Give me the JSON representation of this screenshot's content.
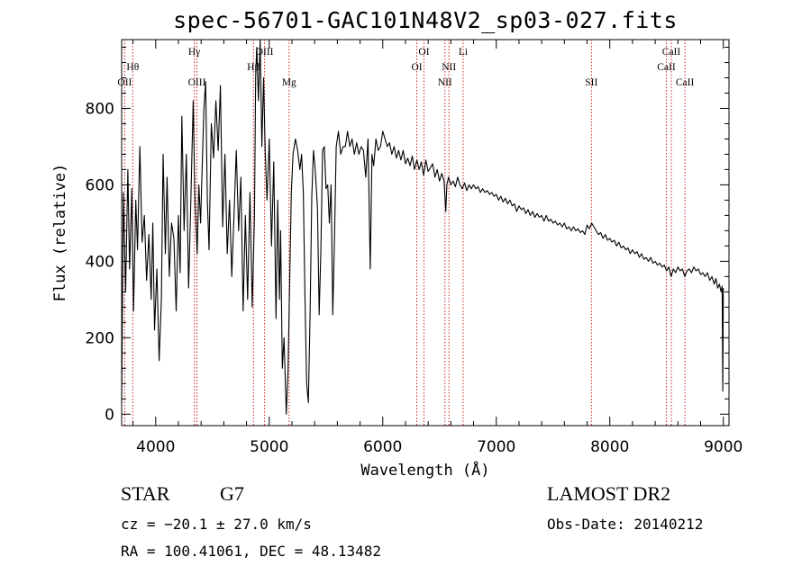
{
  "title": "spec-56701-GAC101N48V2_sp03-027.fits",
  "chart_data": {
    "type": "line",
    "xlabel": "Wavelength (Å)",
    "ylabel": "Flux (relative)",
    "xlim": [
      3700,
      9050
    ],
    "ylim": [
      -30,
      980
    ],
    "xticks": [
      4000,
      5000,
      6000,
      7000,
      8000,
      9000
    ],
    "yticks": [
      0,
      200,
      400,
      600,
      800
    ],
    "grid": false,
    "series": [
      {
        "color": "#000000",
        "points": [
          [
            3700,
            30
          ],
          [
            3715,
            580
          ],
          [
            3735,
            320
          ],
          [
            3755,
            640
          ],
          [
            3770,
            380
          ],
          [
            3790,
            590
          ],
          [
            3805,
            270
          ],
          [
            3825,
            560
          ],
          [
            3840,
            430
          ],
          [
            3860,
            700
          ],
          [
            3880,
            450
          ],
          [
            3900,
            520
          ],
          [
            3920,
            350
          ],
          [
            3940,
            470
          ],
          [
            3960,
            300
          ],
          [
            3975,
            500
          ],
          [
            3990,
            220
          ],
          [
            4010,
            380
          ],
          [
            4030,
            140
          ],
          [
            4050,
            300
          ],
          [
            4065,
            680
          ],
          [
            4085,
            420
          ],
          [
            4100,
            620
          ],
          [
            4120,
            360
          ],
          [
            4140,
            500
          ],
          [
            4160,
            460
          ],
          [
            4180,
            270
          ],
          [
            4200,
            520
          ],
          [
            4215,
            370
          ],
          [
            4230,
            780
          ],
          [
            4250,
            480
          ],
          [
            4270,
            680
          ],
          [
            4290,
            330
          ],
          [
            4310,
            560
          ],
          [
            4330,
            820
          ],
          [
            4345,
            570
          ],
          [
            4365,
            420
          ],
          [
            4380,
            600
          ],
          [
            4395,
            500
          ],
          [
            4410,
            650
          ],
          [
            4425,
            800
          ],
          [
            4440,
            870
          ],
          [
            4455,
            560
          ],
          [
            4470,
            430
          ],
          [
            4490,
            760
          ],
          [
            4510,
            670
          ],
          [
            4530,
            820
          ],
          [
            4550,
            690
          ],
          [
            4570,
            860
          ],
          [
            4590,
            490
          ],
          [
            4610,
            680
          ],
          [
            4630,
            420
          ],
          [
            4650,
            560
          ],
          [
            4670,
            360
          ],
          [
            4690,
            520
          ],
          [
            4710,
            690
          ],
          [
            4730,
            480
          ],
          [
            4750,
            620
          ],
          [
            4770,
            270
          ],
          [
            4790,
            520
          ],
          [
            4810,
            300
          ],
          [
            4830,
            580
          ],
          [
            4850,
            280
          ],
          [
            4870,
            520
          ],
          [
            4880,
            880
          ],
          [
            4890,
            960
          ],
          [
            4905,
            820
          ],
          [
            4920,
            980
          ],
          [
            4935,
            700
          ],
          [
            4950,
            880
          ],
          [
            4965,
            680
          ],
          [
            4980,
            560
          ],
          [
            5000,
            720
          ],
          [
            5020,
            440
          ],
          [
            5040,
            660
          ],
          [
            5060,
            250
          ],
          [
            5075,
            560
          ],
          [
            5090,
            300
          ],
          [
            5100,
            480
          ],
          [
            5115,
            120
          ],
          [
            5130,
            200
          ],
          [
            5150,
            0
          ],
          [
            5165,
            110
          ],
          [
            5180,
            350
          ],
          [
            5195,
            580
          ],
          [
            5210,
            680
          ],
          [
            5230,
            720
          ],
          [
            5250,
            690
          ],
          [
            5270,
            640
          ],
          [
            5285,
            680
          ],
          [
            5300,
            580
          ],
          [
            5315,
            300
          ],
          [
            5330,
            80
          ],
          [
            5345,
            30
          ],
          [
            5360,
            260
          ],
          [
            5375,
            570
          ],
          [
            5390,
            690
          ],
          [
            5405,
            640
          ],
          [
            5425,
            540
          ],
          [
            5440,
            260
          ],
          [
            5455,
            430
          ],
          [
            5470,
            690
          ],
          [
            5485,
            700
          ],
          [
            5500,
            590
          ],
          [
            5515,
            600
          ],
          [
            5530,
            500
          ],
          [
            5545,
            600
          ],
          [
            5560,
            260
          ],
          [
            5575,
            460
          ],
          [
            5590,
            700
          ],
          [
            5610,
            740
          ],
          [
            5630,
            680
          ],
          [
            5650,
            700
          ],
          [
            5670,
            700
          ],
          [
            5690,
            740
          ],
          [
            5710,
            700
          ],
          [
            5730,
            720
          ],
          [
            5750,
            680
          ],
          [
            5770,
            710
          ],
          [
            5790,
            680
          ],
          [
            5810,
            700
          ],
          [
            5830,
            690
          ],
          [
            5850,
            620
          ],
          [
            5870,
            720
          ],
          [
            5890,
            380
          ],
          [
            5905,
            680
          ],
          [
            5920,
            650
          ],
          [
            5940,
            720
          ],
          [
            5960,
            690
          ],
          [
            5980,
            700
          ],
          [
            6000,
            740
          ],
          [
            6020,
            720
          ],
          [
            6040,
            700
          ],
          [
            6060,
            710
          ],
          [
            6080,
            680
          ],
          [
            6100,
            700
          ],
          [
            6120,
            670
          ],
          [
            6140,
            690
          ],
          [
            6160,
            665
          ],
          [
            6180,
            690
          ],
          [
            6200,
            655
          ],
          [
            6220,
            670
          ],
          [
            6240,
            650
          ],
          [
            6260,
            675
          ],
          [
            6280,
            640
          ],
          [
            6300,
            665
          ],
          [
            6320,
            640
          ],
          [
            6340,
            660
          ],
          [
            6360,
            625
          ],
          [
            6380,
            665
          ],
          [
            6400,
            635
          ],
          [
            6420,
            645
          ],
          [
            6440,
            655
          ],
          [
            6460,
            620
          ],
          [
            6480,
            640
          ],
          [
            6500,
            610
          ],
          [
            6520,
            630
          ],
          [
            6540,
            610
          ],
          [
            6555,
            530
          ],
          [
            6565,
            600
          ],
          [
            6580,
            620
          ],
          [
            6600,
            600
          ],
          [
            6620,
            610
          ],
          [
            6640,
            595
          ],
          [
            6660,
            620
          ],
          [
            6680,
            600
          ],
          [
            6700,
            590
          ],
          [
            6720,
            605
          ],
          [
            6740,
            585
          ],
          [
            6760,
            600
          ],
          [
            6780,
            590
          ],
          [
            6800,
            600
          ],
          [
            6820,
            590
          ],
          [
            6840,
            595
          ],
          [
            6860,
            580
          ],
          [
            6880,
            590
          ],
          [
            6900,
            580
          ],
          [
            6920,
            585
          ],
          [
            6940,
            575
          ],
          [
            6960,
            580
          ],
          [
            6980,
            570
          ],
          [
            7000,
            575
          ],
          [
            7020,
            560
          ],
          [
            7040,
            570
          ],
          [
            7060,
            555
          ],
          [
            7080,
            565
          ],
          [
            7100,
            550
          ],
          [
            7120,
            560
          ],
          [
            7140,
            545
          ],
          [
            7160,
            550
          ],
          [
            7180,
            530
          ],
          [
            7200,
            545
          ],
          [
            7220,
            535
          ],
          [
            7240,
            540
          ],
          [
            7260,
            525
          ],
          [
            7280,
            535
          ],
          [
            7300,
            520
          ],
          [
            7320,
            530
          ],
          [
            7340,
            515
          ],
          [
            7360,
            525
          ],
          [
            7380,
            515
          ],
          [
            7400,
            520
          ],
          [
            7420,
            505
          ],
          [
            7440,
            520
          ],
          [
            7460,
            505
          ],
          [
            7480,
            510
          ],
          [
            7500,
            500
          ],
          [
            7520,
            505
          ],
          [
            7540,
            495
          ],
          [
            7560,
            500
          ],
          [
            7580,
            490
          ],
          [
            7600,
            500
          ],
          [
            7620,
            485
          ],
          [
            7640,
            490
          ],
          [
            7660,
            480
          ],
          [
            7680,
            490
          ],
          [
            7700,
            480
          ],
          [
            7720,
            485
          ],
          [
            7740,
            475
          ],
          [
            7760,
            480
          ],
          [
            7780,
            470
          ],
          [
            7800,
            495
          ],
          [
            7820,
            485
          ],
          [
            7840,
            500
          ],
          [
            7860,
            490
          ],
          [
            7880,
            480
          ],
          [
            7900,
            470
          ],
          [
            7920,
            475
          ],
          [
            7940,
            460
          ],
          [
            7960,
            470
          ],
          [
            7980,
            455
          ],
          [
            8000,
            460
          ],
          [
            8020,
            450
          ],
          [
            8040,
            455
          ],
          [
            8060,
            440
          ],
          [
            8080,
            450
          ],
          [
            8100,
            435
          ],
          [
            8120,
            440
          ],
          [
            8140,
            430
          ],
          [
            8160,
            435
          ],
          [
            8180,
            420
          ],
          [
            8200,
            430
          ],
          [
            8220,
            420
          ],
          [
            8240,
            425
          ],
          [
            8260,
            410
          ],
          [
            8280,
            420
          ],
          [
            8300,
            405
          ],
          [
            8320,
            410
          ],
          [
            8340,
            400
          ],
          [
            8360,
            410
          ],
          [
            8380,
            395
          ],
          [
            8400,
            400
          ],
          [
            8420,
            390
          ],
          [
            8440,
            395
          ],
          [
            8460,
            385
          ],
          [
            8480,
            390
          ],
          [
            8500,
            375
          ],
          [
            8520,
            385
          ],
          [
            8540,
            360
          ],
          [
            8560,
            380
          ],
          [
            8580,
            370
          ],
          [
            8600,
            385
          ],
          [
            8620,
            375
          ],
          [
            8640,
            380
          ],
          [
            8660,
            360
          ],
          [
            8680,
            375
          ],
          [
            8700,
            380
          ],
          [
            8720,
            370
          ],
          [
            8740,
            385
          ],
          [
            8760,
            375
          ],
          [
            8780,
            380
          ],
          [
            8800,
            365
          ],
          [
            8820,
            370
          ],
          [
            8840,
            360
          ],
          [
            8860,
            370
          ],
          [
            8880,
            350
          ],
          [
            8900,
            360
          ],
          [
            8920,
            340
          ],
          [
            8935,
            355
          ],
          [
            8950,
            330
          ],
          [
            8965,
            340
          ],
          [
            8980,
            320
          ],
          [
            8990,
            335
          ],
          [
            8995,
            60
          ],
          [
            9000,
            330
          ]
        ]
      }
    ],
    "lines": [
      {
        "label": "OII",
        "x": 3727,
        "row": 3
      },
      {
        "label": "Hθ",
        "x": 3798,
        "row": 2
      },
      {
        "label": "Hγ",
        "x": 4340,
        "row": 1
      },
      {
        "label": "OIII",
        "x": 4363,
        "row": 3
      },
      {
        "label": "Hβ",
        "x": 4861,
        "row": 2
      },
      {
        "label": "OIII",
        "x": 4959,
        "row": 1
      },
      {
        "label": "Mg",
        "x": 5175,
        "row": 3
      },
      {
        "label": "OI",
        "x": 6300,
        "row": 2
      },
      {
        "label": "OI",
        "x": 6363,
        "row": 1
      },
      {
        "label": "NII",
        "x": 6548,
        "row": 3
      },
      {
        "label": "NII",
        "x": 6583,
        "row": 2
      },
      {
        "label": "Li",
        "x": 6708,
        "row": 1
      },
      {
        "label": "SII",
        "x": 7838,
        "row": 3
      },
      {
        "label": "CaII",
        "x": 8498,
        "row": 2
      },
      {
        "label": "CaII",
        "x": 8542,
        "row": 1
      },
      {
        "label": "CaII",
        "x": 8662,
        "row": 3
      }
    ],
    "line_color": "#cc2222"
  },
  "info": {
    "obj_class": "STAR",
    "subclass": "G7",
    "survey": "LAMOST DR2",
    "cz": "cz = −20.1 ± 27.0 km/s",
    "obs_date": "Obs-Date: 20140212",
    "radec": "RA = 100.41061, DEC =  48.13482"
  }
}
